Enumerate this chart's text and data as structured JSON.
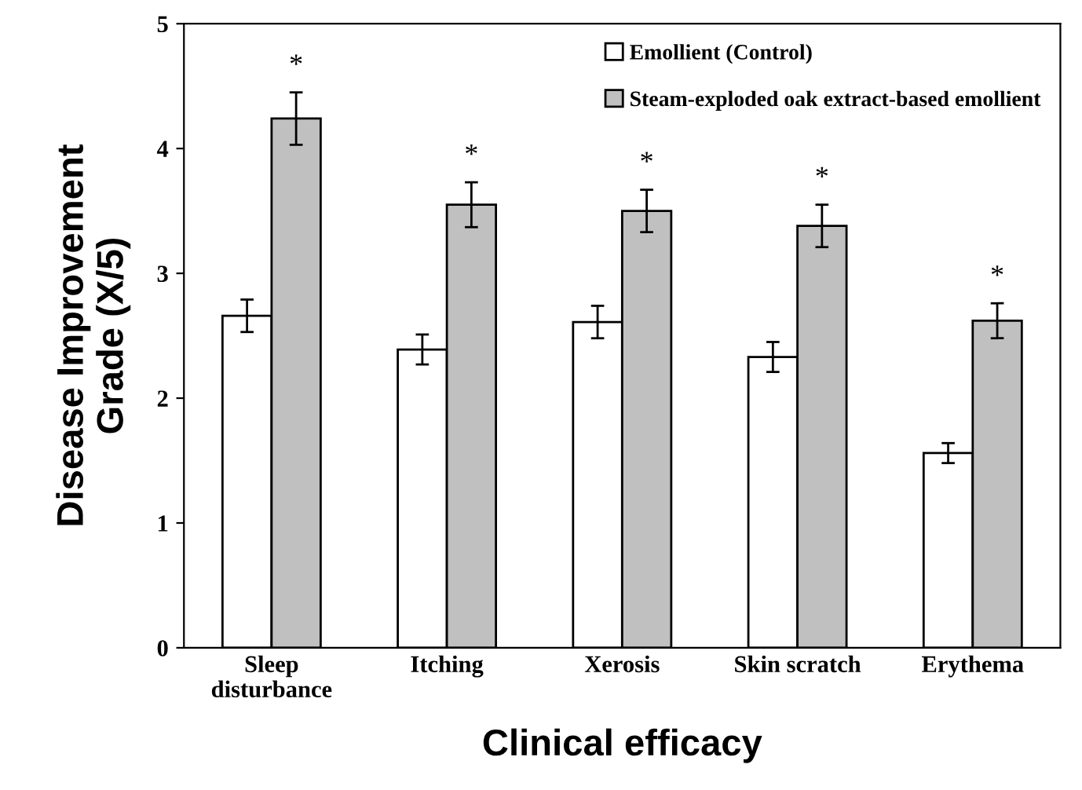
{
  "chart_data": {
    "type": "bar",
    "xlabel": "Clinical efficacy",
    "ylabel": "Disease Improvement\nGrade (X/5)",
    "categories": [
      "Sleep\ndisturbance",
      "Itching",
      "Xerosis",
      "Skin scratch",
      "Erythema"
    ],
    "series": [
      {
        "name": "Emollient (Control)",
        "color": "#ffffff",
        "values": [
          2.66,
          2.39,
          2.61,
          2.33,
          1.56
        ],
        "errors": [
          0.13,
          0.12,
          0.13,
          0.12,
          0.08
        ]
      },
      {
        "name": "Steam-exploded oak extract-based emollient",
        "color": "#c0c0c0",
        "values": [
          4.24,
          3.55,
          3.5,
          3.38,
          2.62
        ],
        "errors": [
          0.21,
          0.18,
          0.17,
          0.17,
          0.14
        ]
      }
    ],
    "annotations": [
      "*",
      "*",
      "*",
      "*",
      "*"
    ],
    "ylim": [
      0,
      5
    ],
    "yticks": [
      0,
      1,
      2,
      3,
      4,
      5
    ],
    "grid": false,
    "legend": "top right"
  }
}
